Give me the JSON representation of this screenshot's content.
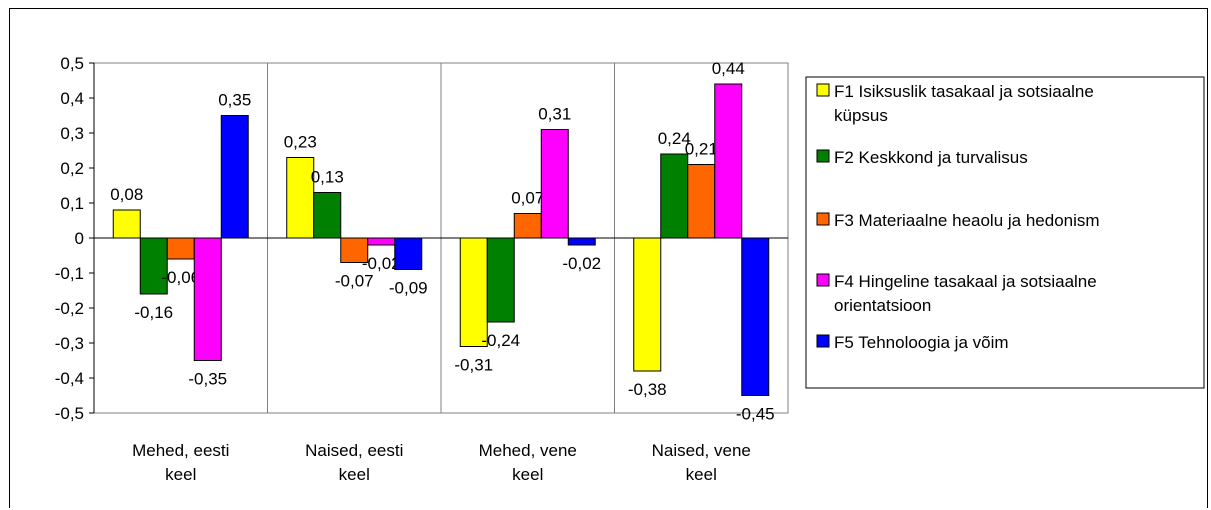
{
  "chart_data": {
    "type": "bar",
    "categories": [
      [
        "Mehed, eesti",
        "keel"
      ],
      [
        "Naised, eesti",
        "keel"
      ],
      [
        "Mehed, vene",
        "keel"
      ],
      [
        "Naised, vene",
        "keel"
      ]
    ],
    "series": [
      {
        "name": [
          "F1 Isiksuslik tasakaal ja sotsiaalne",
          "küpsus"
        ],
        "color": "#ffff00",
        "values": [
          0.08,
          0.23,
          -0.31,
          -0.38
        ],
        "labels": [
          "0,08",
          "0,23",
          "-0,31",
          "-0,38"
        ]
      },
      {
        "name": [
          "F2 Keskkond ja turvalisus"
        ],
        "color": "#008000",
        "values": [
          -0.16,
          0.13,
          -0.24,
          0.24
        ],
        "labels": [
          "-0,16",
          "0,13",
          "-0,24",
          "0,24"
        ]
      },
      {
        "name": [
          "F3 Materiaalne heaolu ja hedonism"
        ],
        "color": "#ff6600",
        "values": [
          -0.06,
          -0.07,
          0.07,
          0.21
        ],
        "labels": [
          "-0,06",
          "-0,07",
          "0,07",
          "0,21"
        ]
      },
      {
        "name": [
          "F4 Hingeline tasakaal ja sotsiaalne",
          "orientatsioon"
        ],
        "color": "#ff00ff",
        "values": [
          -0.35,
          -0.02,
          0.31,
          0.44
        ],
        "labels": [
          "-0,35",
          "-0,02",
          "0,31",
          "0,44"
        ]
      },
      {
        "name": [
          "F5 Tehnoloogia ja võim"
        ],
        "color": "#0000ff",
        "values": [
          0.35,
          -0.09,
          -0.02,
          -0.45
        ],
        "labels": [
          "0,35",
          "-0,09",
          "-0,02",
          "-0,45"
        ]
      }
    ],
    "yticks": [
      0.5,
      0.4,
      0.3,
      0.2,
      0.1,
      0,
      -0.1,
      -0.2,
      -0.3,
      -0.4,
      -0.5
    ],
    "ytick_labels": [
      "0,5",
      "0,4",
      "0,3",
      "0,2",
      "0,1",
      "0",
      "-0,1",
      "-0,2",
      "-0,3",
      "-0,4",
      "-0,5"
    ],
    "ylim": [
      -0.5,
      0.5
    ],
    "grid": "vertical category separators only",
    "legend_position": "right"
  }
}
